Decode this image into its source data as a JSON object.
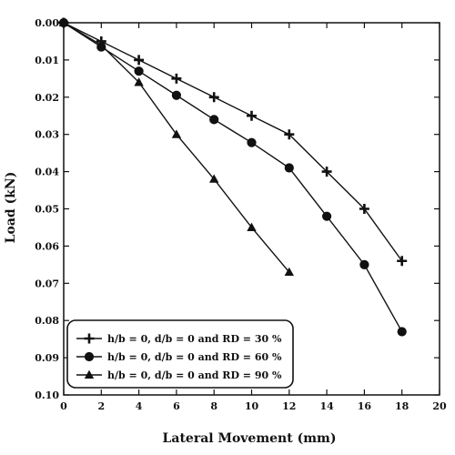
{
  "chart_data": {
    "type": "line",
    "title": "",
    "xlabel": "Lateral Movement (mm)",
    "ylabel": "Load (kN)",
    "xlim": [
      0,
      20
    ],
    "ylim": [
      0,
      0.1
    ],
    "y_inverted": true,
    "x_ticks": [
      0,
      2,
      4,
      6,
      8,
      10,
      12,
      14,
      16,
      18,
      20
    ],
    "y_ticks": [
      0.0,
      0.01,
      0.02,
      0.03,
      0.04,
      0.05,
      0.06,
      0.07,
      0.08,
      0.09,
      0.1
    ],
    "x_tick_labels": [
      "0",
      "2",
      "4",
      "6",
      "8",
      "10",
      "12",
      "14",
      "16",
      "18",
      "20"
    ],
    "y_tick_labels": [
      "0.00",
      "0.01",
      "0.02",
      "0.03",
      "0.04",
      "0.05",
      "0.06",
      "0.07",
      "0.08",
      "0.09",
      "0.10"
    ],
    "grid": false,
    "legend_position": "bottom-left",
    "series": [
      {
        "name": "h/b = 0, d/b = 0 and RD = 30 %",
        "marker": "plus",
        "x": [
          0,
          2,
          4,
          6,
          8,
          10,
          12,
          14,
          16,
          18
        ],
        "y": [
          0,
          0.005,
          0.01,
          0.015,
          0.02,
          0.025,
          0.03,
          0.04,
          0.05,
          0.064
        ]
      },
      {
        "name": "h/b = 0, d/b = 0 and RD = 60 %",
        "marker": "circle",
        "x": [
          0,
          2,
          4,
          6,
          8,
          10,
          12,
          14,
          16,
          18
        ],
        "y": [
          0,
          0.0065,
          0.013,
          0.0195,
          0.026,
          0.0322,
          0.039,
          0.052,
          0.065,
          0.083
        ]
      },
      {
        "name": "h/b = 0, d/b = 0 and RD = 90 %",
        "marker": "triangle",
        "x": [
          0,
          2,
          4,
          6,
          8,
          10,
          12
        ],
        "y": [
          0,
          0.006,
          0.016,
          0.03,
          0.042,
          0.055,
          0.067
        ]
      }
    ]
  }
}
